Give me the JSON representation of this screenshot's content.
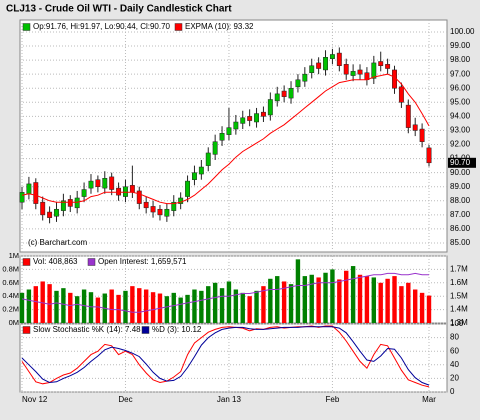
{
  "chart_data": [
    {
      "type": "candlestick",
      "title": "CLJ13 - Crude Oil WTI - Daily Candlestick Chart",
      "categories": [
        "Nov 12",
        null,
        null,
        null,
        null,
        null,
        null,
        null,
        null,
        null,
        null,
        null,
        null,
        null,
        null,
        "Dec",
        null,
        null,
        null,
        null,
        null,
        null,
        null,
        null,
        null,
        null,
        null,
        null,
        null,
        null,
        "Jan 13",
        null,
        null,
        null,
        null,
        null,
        null,
        null,
        null,
        null,
        null,
        null,
        null,
        null,
        null,
        "Feb",
        null,
        null,
        null,
        null,
        null,
        null,
        null,
        null,
        null,
        null,
        null,
        null,
        null,
        "Mar"
      ],
      "open": [
        87.9,
        88.5,
        89.3,
        87.9,
        87.2,
        86.9,
        87.3,
        88.1,
        87.5,
        88.3,
        88.9,
        89.5,
        88.9,
        89.7,
        88.9,
        88.3,
        89.1,
        88.7,
        87.9,
        87.6,
        87.4,
        86.9,
        87.3,
        87.8,
        88.3,
        89.5,
        89.9,
        90.5,
        91.3,
        92.3,
        92.7,
        93.1,
        93.5,
        94.0,
        93.6,
        94.3,
        94.1,
        95.1,
        95.8,
        95.3,
        96.1,
        96.5,
        97.1,
        97.8,
        97.3,
        98.1,
        98.5,
        97.7,
        96.9,
        97.3,
        97.1,
        96.7,
        97.9,
        97.7,
        97.3,
        96.1,
        94.8,
        93.4,
        93.1,
        91.76
      ],
      "high": [
        89.0,
        89.7,
        89.6,
        88.3,
        87.6,
        87.9,
        88.5,
        88.4,
        88.7,
        89.3,
        89.9,
        89.8,
        90.1,
        90.0,
        89.3,
        89.5,
        90.5,
        89.0,
        88.3,
        88.0,
        87.7,
        87.8,
        88.4,
        88.6,
        89.8,
        90.5,
        90.9,
        91.8,
        92.7,
        93.3,
        94.6,
        94.1,
        94.4,
        94.5,
        94.6,
        94.7,
        95.7,
        96.1,
        96.2,
        96.5,
        97.0,
        97.5,
        98.1,
        98.2,
        98.7,
        98.8,
        98.9,
        98.1,
        97.7,
        97.7,
        97.5,
        98.3,
        98.6,
        98.1,
        97.6,
        96.4,
        95.2,
        93.9,
        93.5,
        91.97
      ],
      "low": [
        87.4,
        88.1,
        87.4,
        86.6,
        86.4,
        86.5,
        86.9,
        87.2,
        87.1,
        87.9,
        88.5,
        88.6,
        88.5,
        88.4,
        88.0,
        87.9,
        88.2,
        87.4,
        87.1,
        86.8,
        86.6,
        86.5,
        86.9,
        87.4,
        87.9,
        89.1,
        89.5,
        90.1,
        90.9,
        91.9,
        92.3,
        92.7,
        93.1,
        93.3,
        93.2,
        93.6,
        93.7,
        94.7,
        95.0,
        94.9,
        95.7,
        96.1,
        96.7,
        97.0,
        96.9,
        97.7,
        97.2,
        96.6,
        96.5,
        96.6,
        96.2,
        96.3,
        97.2,
        97.0,
        95.6,
        94.6,
        92.8,
        92.6,
        91.8,
        90.44
      ],
      "close": [
        88.6,
        89.2,
        87.8,
        87.0,
        86.8,
        87.4,
        88.0,
        87.6,
        88.2,
        88.8,
        89.4,
        89.0,
        89.6,
        88.8,
        88.4,
        89.0,
        88.6,
        87.8,
        87.5,
        87.2,
        87.0,
        87.4,
        87.9,
        88.2,
        89.4,
        90.0,
        90.4,
        91.4,
        92.2,
        92.8,
        93.2,
        93.6,
        93.9,
        93.7,
        94.2,
        94.0,
        95.2,
        95.6,
        95.4,
        96.0,
        96.6,
        97.0,
        97.6,
        97.4,
        98.2,
        98.4,
        97.6,
        97.0,
        97.2,
        97.0,
        96.6,
        97.8,
        97.6,
        97.4,
        96.0,
        95.0,
        93.2,
        93.0,
        92.2,
        90.7
      ],
      "up_color": "#00c000",
      "down_color": "#ff0000",
      "legend_label": "Op:91.76, Hi:91.97, Lo:90.44, Cl:90.70",
      "series": [
        {
          "name": "EXPMA (10): 93.32",
          "color": "#ff0000",
          "values": [
            88.4,
            88.5,
            88.4,
            88.2,
            88.0,
            87.9,
            87.9,
            87.9,
            87.9,
            88.0,
            88.3,
            88.4,
            88.6,
            88.6,
            88.6,
            88.6,
            88.6,
            88.5,
            88.3,
            88.1,
            87.9,
            87.8,
            87.8,
            87.9,
            88.1,
            88.4,
            88.8,
            89.2,
            89.7,
            90.2,
            90.6,
            91.1,
            91.5,
            91.8,
            92.1,
            92.4,
            92.8,
            93.1,
            93.4,
            93.8,
            94.2,
            94.6,
            95.0,
            95.4,
            95.8,
            96.1,
            96.4,
            96.5,
            96.6,
            96.6,
            96.6,
            96.8,
            96.9,
            97.0,
            96.8,
            96.3,
            95.6,
            95.0,
            94.2,
            93.32
          ]
        }
      ],
      "ylim": [
        84.36,
        100.85
      ],
      "yticks": [
        {
          "value": 85,
          "label": "85.00"
        },
        {
          "value": 86,
          "label": "86.00"
        },
        {
          "value": 87,
          "label": "87.00"
        },
        {
          "value": 88,
          "label": "88.00"
        },
        {
          "value": 89,
          "label": "89.00"
        },
        {
          "value": 90,
          "label": "90.00"
        },
        {
          "value": 91,
          "label": "91.00"
        },
        {
          "value": 92,
          "label": "92.00"
        },
        {
          "value": 93,
          "label": "93.00"
        },
        {
          "value": 94,
          "label": "94.00"
        },
        {
          "value": 95,
          "label": "95.00"
        },
        {
          "value": 96,
          "label": "96.00"
        },
        {
          "value": 97,
          "label": "97.00"
        },
        {
          "value": 98,
          "label": "98.00"
        },
        {
          "value": 99,
          "label": "99.00"
        },
        {
          "value": 100,
          "label": "100.00"
        }
      ],
      "grid": true,
      "annotation": "(c) Barchart.com",
      "last_label": "90.70"
    },
    {
      "type": "bar",
      "series": [
        {
          "name": "Vol: 408,863",
          "color": "#ff0000",
          "up_color": "#008000",
          "values": [
            0.45,
            0.5,
            0.55,
            0.62,
            0.58,
            0.48,
            0.52,
            0.45,
            0.4,
            0.5,
            0.46,
            0.38,
            0.44,
            0.5,
            0.42,
            0.48,
            0.55,
            0.52,
            0.5,
            0.46,
            0.44,
            0.4,
            0.45,
            0.38,
            0.42,
            0.5,
            0.48,
            0.55,
            0.6,
            0.52,
            0.62,
            0.5,
            0.45,
            0.4,
            0.48,
            0.55,
            0.66,
            0.7,
            0.62,
            0.58,
            0.95,
            0.7,
            0.72,
            0.68,
            0.75,
            0.8,
            0.65,
            0.78,
            0.85,
            0.72,
            0.7,
            0.68,
            0.6,
            0.66,
            0.7,
            0.55,
            0.6,
            0.5,
            0.45,
            0.408863
          ]
        },
        {
          "name": "Open Interest: 1,659,571",
          "color": "#9933cc",
          "axis": "y2",
          "values": [
            1.48,
            1.47,
            1.46,
            1.45,
            1.44,
            1.45,
            1.44,
            1.43,
            1.44,
            1.43,
            1.42,
            1.42,
            1.41,
            1.4,
            1.4,
            1.39,
            1.38,
            1.38,
            1.39,
            1.4,
            1.41,
            1.42,
            1.43,
            1.44,
            1.45,
            1.46,
            1.47,
            1.48,
            1.49,
            1.5,
            1.5,
            1.51,
            1.52,
            1.52,
            1.53,
            1.54,
            1.55,
            1.55,
            1.56,
            1.57,
            1.58,
            1.58,
            1.59,
            1.6,
            1.6,
            1.6,
            1.61,
            1.62,
            1.63,
            1.64,
            1.65,
            1.66,
            1.66,
            1.67,
            1.67,
            1.66,
            1.66,
            1.67,
            1.66,
            1.659571
          ]
        }
      ],
      "ylim": [
        0,
        1
      ],
      "yticks": [
        {
          "value": 0,
          "label": "0M"
        },
        {
          "value": 0.2,
          "label": "0.2M"
        },
        {
          "value": 0.4,
          "label": "0.4M"
        },
        {
          "value": 0.6,
          "label": "0.6M"
        },
        {
          "value": 0.8,
          "label": "0.8M"
        },
        {
          "value": 1,
          "label": "1M"
        }
      ],
      "y2lim": [
        1.3,
        1.8
      ],
      "y2ticks": [
        {
          "value": 1.3,
          "label": "1.3M"
        },
        {
          "value": 1.4,
          "label": "1.4M"
        },
        {
          "value": 1.5,
          "label": "1.5M"
        },
        {
          "value": 1.6,
          "label": "1.6M"
        },
        {
          "value": 1.7,
          "label": "1.7M"
        }
      ],
      "grid": true
    },
    {
      "type": "line",
      "series": [
        {
          "name": "Slow Stochastic %K (14): 7.48",
          "color": "#ff0000",
          "values": [
            45,
            30,
            15,
            12,
            14,
            20,
            25,
            28,
            35,
            45,
            55,
            60,
            70,
            68,
            55,
            60,
            55,
            40,
            28,
            18,
            14,
            16,
            22,
            30,
            55,
            72,
            80,
            88,
            92,
            95,
            96,
            95,
            94,
            90,
            93,
            92,
            95,
            96,
            94,
            95,
            96,
            96,
            97,
            95,
            97,
            97,
            88,
            75,
            60,
            45,
            35,
            55,
            70,
            68,
            50,
            32,
            18,
            14,
            10,
            7.48
          ]
        },
        {
          "name": "%D (3): 10.12",
          "color": "#000099",
          "values": [
            50,
            40,
            30,
            19,
            14,
            15,
            20,
            24,
            29,
            36,
            45,
            53,
            62,
            66,
            64,
            61,
            57,
            52,
            41,
            29,
            20,
            16,
            17,
            23,
            36,
            52,
            69,
            80,
            87,
            92,
            94,
            95,
            95,
            93,
            92,
            92,
            93,
            94,
            95,
            95,
            95,
            96,
            96,
            96,
            96,
            96,
            94,
            87,
            74,
            60,
            47,
            45,
            53,
            64,
            63,
            50,
            33,
            21,
            14,
            10.12
          ]
        }
      ],
      "ylim": [
        0,
        100
      ],
      "yticks": [
        0,
        20,
        40,
        60,
        80,
        100
      ],
      "grid": true
    }
  ]
}
